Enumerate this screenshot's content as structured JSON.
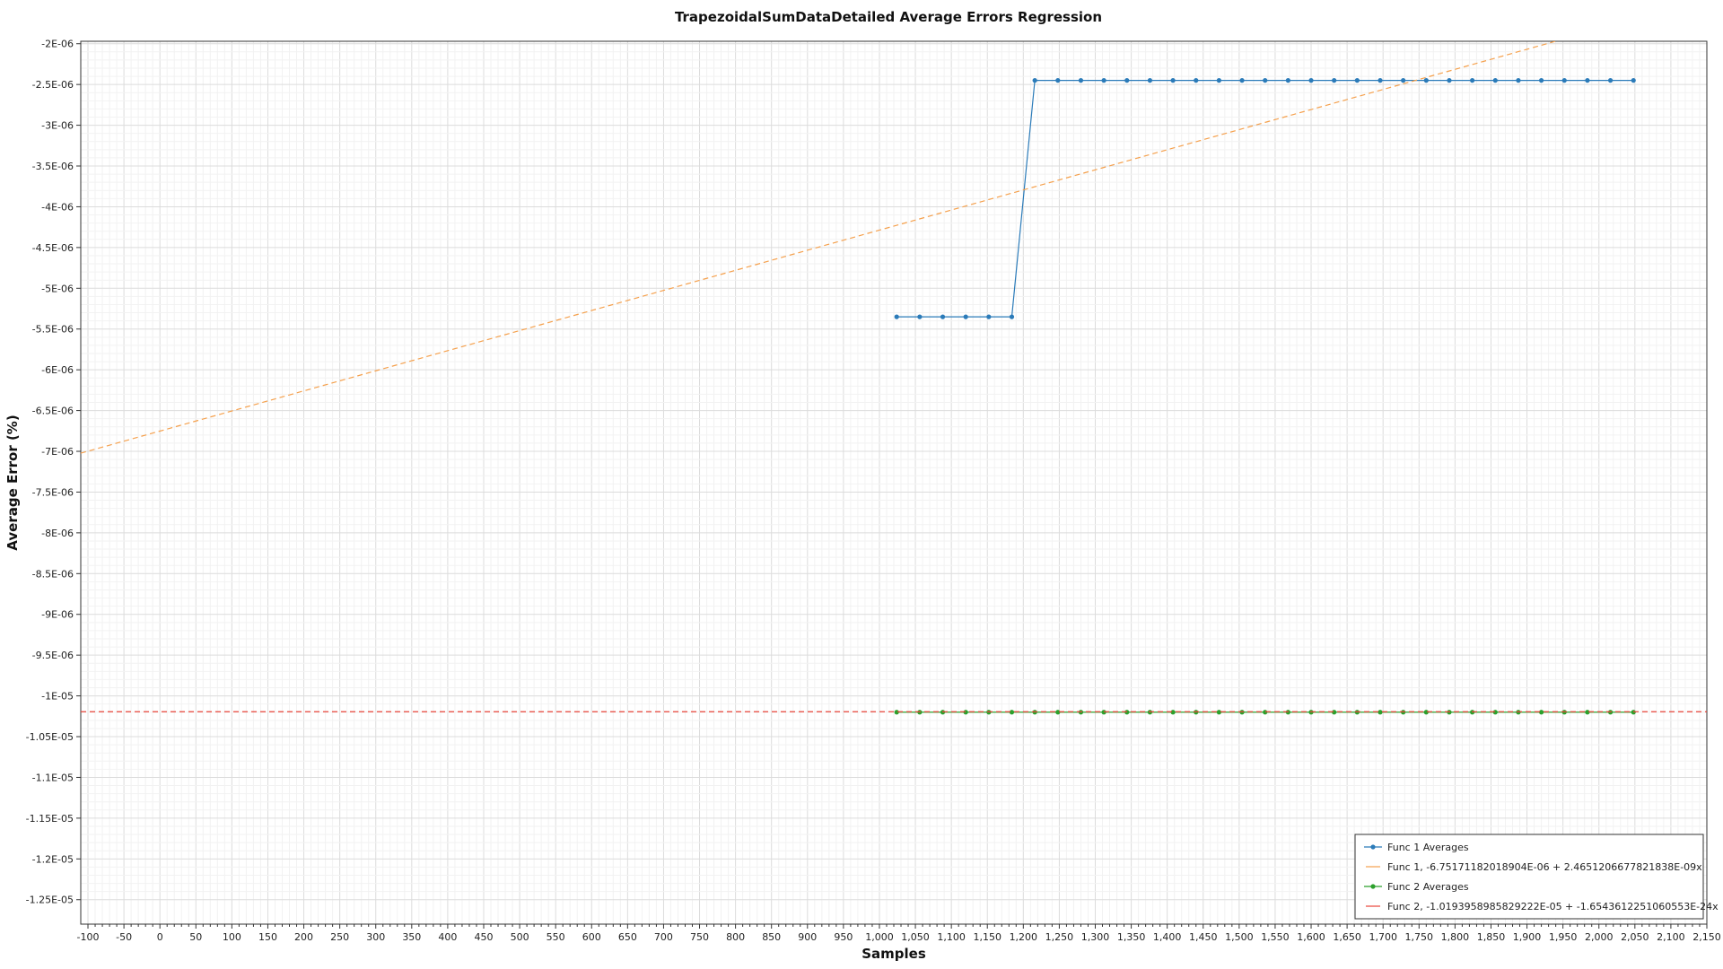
{
  "chart_data": {
    "type": "line",
    "title": "TrapezoidalSumDataDetailed Average Errors Regression",
    "xlabel": "Samples",
    "ylabel": "Average Error (%)",
    "xlim": [
      -110,
      2150
    ],
    "ylim": [
      -1.28e-05,
      -1.97e-06
    ],
    "x_ticks": [
      -100,
      -50,
      0,
      50,
      100,
      150,
      200,
      250,
      300,
      350,
      400,
      450,
      500,
      550,
      600,
      650,
      700,
      750,
      800,
      850,
      900,
      950,
      1000,
      1050,
      1100,
      1150,
      1200,
      1250,
      1300,
      1350,
      1400,
      1450,
      1500,
      1550,
      1600,
      1650,
      1700,
      1750,
      1800,
      1850,
      1900,
      1950,
      2000,
      2050,
      2100,
      2150
    ],
    "x_tick_labels": [
      "-100",
      "-50",
      "0",
      "50",
      "100",
      "150",
      "200",
      "250",
      "300",
      "350",
      "400",
      "450",
      "500",
      "550",
      "600",
      "650",
      "700",
      "750",
      "800",
      "850",
      "900",
      "950",
      "1,000",
      "1,050",
      "1,100",
      "1,150",
      "1,200",
      "1,250",
      "1,300",
      "1,350",
      "1,400",
      "1,450",
      "1,500",
      "1,550",
      "1,600",
      "1,650",
      "1,700",
      "1,750",
      "1,800",
      "1,850",
      "1,900",
      "1,950",
      "2,000",
      "2,050",
      "2,100",
      "2,150"
    ],
    "y_ticks": [
      -2e-06,
      -2.5e-06,
      -3e-06,
      -3.5e-06,
      -4e-06,
      -4.5e-06,
      -5e-06,
      -5.5e-06,
      -6e-06,
      -6.5e-06,
      -7e-06,
      -7.5e-06,
      -8e-06,
      -8.5e-06,
      -9e-06,
      -9.5e-06,
      -1e-05,
      -1.05e-05,
      -1.1e-05,
      -1.15e-05,
      -1.2e-05,
      -1.25e-05
    ],
    "y_tick_labels": [
      "-2E-06",
      "-2.5E-06",
      "-3E-06",
      "-3.5E-06",
      "-4E-06",
      "-4.5E-06",
      "-5E-06",
      "-5.5E-06",
      "-6E-06",
      "-6.5E-06",
      "-7E-06",
      "-7.5E-06",
      "-8E-06",
      "-8.5E-06",
      "-9E-06",
      "-9.5E-06",
      "-1E-05",
      "-1.05E-05",
      "-1.1E-05",
      "-1.15E-05",
      "-1.2E-05",
      "-1.25E-05"
    ],
    "grid": true,
    "legend_position": "bottom-right",
    "series": [
      {
        "name": "Func 1 Averages",
        "kind": "line-markers",
        "color": "#2b7bb9",
        "x": [
          1024,
          1056,
          1088,
          1120,
          1152,
          1184,
          1216,
          1248,
          1280,
          1312,
          1344,
          1376,
          1408,
          1440,
          1472,
          1504,
          1536,
          1568,
          1600,
          1632,
          1664,
          1696,
          1728,
          1760,
          1792,
          1824,
          1856,
          1888,
          1920,
          1952,
          1984,
          2016,
          2048
        ],
        "y": [
          -5.35e-06,
          -5.35e-06,
          -5.35e-06,
          -5.35e-06,
          -5.35e-06,
          -5.35e-06,
          -2.45e-06,
          -2.45e-06,
          -2.45e-06,
          -2.45e-06,
          -2.45e-06,
          -2.45e-06,
          -2.45e-06,
          -2.45e-06,
          -2.45e-06,
          -2.45e-06,
          -2.45e-06,
          -2.45e-06,
          -2.45e-06,
          -2.45e-06,
          -2.45e-06,
          -2.45e-06,
          -2.45e-06,
          -2.45e-06,
          -2.45e-06,
          -2.45e-06,
          -2.45e-06,
          -2.45e-06,
          -2.45e-06,
          -2.45e-06,
          -2.45e-06,
          -2.45e-06,
          -2.45e-06
        ]
      },
      {
        "name": "Func 1, -6.75171182018904E-06 + 2.46512066778218 38E-09x",
        "kind": "dashed-regression",
        "color": "#f5a04c",
        "intercept": -6.75171182018904e-06,
        "slope": 2.4651206677821838e-09
      },
      {
        "name": "Func 2 Averages",
        "kind": "line-markers",
        "color": "#2ca02c",
        "x": [
          1024,
          1056,
          1088,
          1120,
          1152,
          1184,
          1216,
          1248,
          1280,
          1312,
          1344,
          1376,
          1408,
          1440,
          1472,
          1504,
          1536,
          1568,
          1600,
          1632,
          1664,
          1696,
          1728,
          1760,
          1792,
          1824,
          1856,
          1888,
          1920,
          1952,
          1984,
          2016,
          2048
        ],
        "y": [
          -1.02e-05,
          -1.02e-05,
          -1.02e-05,
          -1.02e-05,
          -1.02e-05,
          -1.02e-05,
          -1.02e-05,
          -1.02e-05,
          -1.02e-05,
          -1.02e-05,
          -1.02e-05,
          -1.02e-05,
          -1.02e-05,
          -1.02e-05,
          -1.02e-05,
          -1.02e-05,
          -1.02e-05,
          -1.02e-05,
          -1.02e-05,
          -1.02e-05,
          -1.02e-05,
          -1.02e-05,
          -1.02e-05,
          -1.02e-05,
          -1.02e-05,
          -1.02e-05,
          -1.02e-05,
          -1.02e-05,
          -1.02e-05,
          -1.02e-05,
          -1.02e-05,
          -1.02e-05,
          -1.02e-05
        ]
      },
      {
        "name": "Func 2, -1.0193958985829222E-05 + -1.6543612251060553E-24x",
        "kind": "dashed-regression",
        "color": "#e8443a",
        "intercept": -1.0193958985829222e-05,
        "slope": -1.6543612251060553e-24
      }
    ],
    "legend": [
      "Func 1 Averages",
      "Func 1, -6.75171182018904E-06 + 2.4651206677821838E-09x",
      "Func 2 Averages",
      "Func 2, -1.0193958985829222E-05 + -1.6543612251060553E-24x"
    ]
  }
}
